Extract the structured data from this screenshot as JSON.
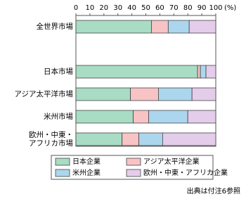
{
  "chart_data": {
    "type": "stacked-barh",
    "categories": [
      "全世界市場",
      null,
      "日本市場",
      "アジア太平洋市場",
      "米州市場",
      "欧州・中東・アフリカ市場"
    ],
    "series": [
      {
        "name": "日本企業",
        "color": "#a8dcc4",
        "values": [
          54,
          null,
          87,
          39,
          41,
          33
        ]
      },
      {
        "name": "アジア太平洋企業",
        "color": "#f7c3c5",
        "values": [
          12,
          null,
          2,
          20,
          11,
          12
        ]
      },
      {
        "name": "米州企業",
        "color": "#acd6ee",
        "values": [
          15,
          null,
          4,
          24,
          28,
          17
        ]
      },
      {
        "name": "欧州・中東・アフリカ企業",
        "color": "#e4cdea",
        "values": [
          19,
          null,
          7,
          17,
          20,
          38
        ]
      }
    ],
    "xlim": [
      0,
      100
    ],
    "xticks": [
      0,
      10,
      20,
      30,
      40,
      50,
      60,
      70,
      80,
      90,
      100
    ],
    "xlabel": "(%)",
    "source": "出典は付注6参照"
  }
}
